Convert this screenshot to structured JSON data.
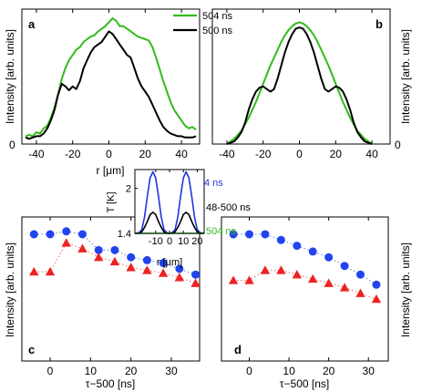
{
  "chart_data": [
    {
      "panel": "a",
      "type": "line",
      "xlabel": "r [μm]",
      "ylabel": "Intensity [arb. units]",
      "xlim": [
        -48,
        50
      ],
      "ylim": [
        0,
        1.03
      ],
      "xticks": [
        -40,
        -20,
        0,
        20,
        40
      ],
      "yticks": [
        0
      ],
      "legend": {
        "placement": "top",
        "entries": [
          "504 ns",
          "500 ns"
        ]
      },
      "series": [
        {
          "name": "504 ns",
          "color": "#33bb1a",
          "x": [
            -46,
            -44,
            -42,
            -40,
            -38,
            -36,
            -34,
            -32,
            -30,
            -28,
            -26,
            -24,
            -22,
            -20,
            -18,
            -16,
            -14,
            -12,
            -10,
            -8,
            -6,
            -4,
            -2,
            0,
            2,
            4,
            6,
            8,
            10,
            12,
            14,
            16,
            18,
            20,
            22,
            24,
            26,
            28,
            30,
            32,
            34,
            36,
            38,
            40,
            42,
            44,
            46,
            48
          ],
          "y": [
            0.06,
            0.07,
            0.06,
            0.09,
            0.08,
            0.12,
            0.14,
            0.2,
            0.28,
            0.38,
            0.5,
            0.58,
            0.64,
            0.68,
            0.72,
            0.74,
            0.78,
            0.8,
            0.82,
            0.83,
            0.86,
            0.88,
            0.9,
            0.93,
            0.96,
            0.94,
            0.9,
            0.9,
            0.88,
            0.86,
            0.84,
            0.82,
            0.81,
            0.8,
            0.79,
            0.74,
            0.66,
            0.57,
            0.48,
            0.4,
            0.32,
            0.26,
            0.22,
            0.18,
            0.14,
            0.12,
            0.13,
            0.11
          ]
        },
        {
          "name": "500 ns",
          "color": "#000000",
          "x": [
            -46,
            -44,
            -42,
            -40,
            -38,
            -36,
            -34,
            -32,
            -30,
            -28,
            -26,
            -24,
            -22,
            -20,
            -18,
            -16,
            -14,
            -12,
            -10,
            -8,
            -6,
            -4,
            -2,
            0,
            2,
            4,
            6,
            8,
            10,
            12,
            14,
            16,
            18,
            20,
            22,
            24,
            26,
            28,
            30,
            32,
            34,
            36,
            38,
            40,
            42,
            44,
            46,
            48
          ],
          "y": [
            0.05,
            0.04,
            0.05,
            0.06,
            0.06,
            0.08,
            0.12,
            0.18,
            0.26,
            0.38,
            0.46,
            0.44,
            0.41,
            0.44,
            0.42,
            0.48,
            0.58,
            0.64,
            0.7,
            0.74,
            0.76,
            0.78,
            0.82,
            0.86,
            0.84,
            0.8,
            0.76,
            0.72,
            0.68,
            0.66,
            0.58,
            0.5,
            0.44,
            0.4,
            0.36,
            0.3,
            0.24,
            0.18,
            0.13,
            0.1,
            0.08,
            0.07,
            0.06,
            0.06,
            0.05,
            0.05,
            0.05,
            0.06
          ]
        }
      ]
    },
    {
      "panel": "b",
      "type": "line",
      "xlabel": "r [μm]",
      "ylabel": "Intensity [arb. units]",
      "ylabel_side": "right",
      "xlim": [
        -48,
        50
      ],
      "ylim": [
        0,
        1.03
      ],
      "xticks": [
        -40,
        -20,
        0,
        20,
        40
      ],
      "yticks": [
        0
      ],
      "series": [
        {
          "name": "504 ns",
          "color": "#33bb1a",
          "x": [
            -40,
            -38,
            -36,
            -34,
            -32,
            -30,
            -28,
            -26,
            -24,
            -22,
            -20,
            -18,
            -16,
            -14,
            -12,
            -10,
            -8,
            -6,
            -4,
            -2,
            0,
            2,
            4,
            6,
            8,
            10,
            12,
            14,
            16,
            18,
            20,
            22,
            24,
            26,
            28,
            30,
            32,
            34,
            36,
            38,
            40
          ],
          "y": [
            0.0,
            0.02,
            0.04,
            0.07,
            0.1,
            0.15,
            0.2,
            0.26,
            0.32,
            0.39,
            0.46,
            0.53,
            0.6,
            0.66,
            0.72,
            0.78,
            0.83,
            0.87,
            0.9,
            0.92,
            0.93,
            0.92,
            0.9,
            0.87,
            0.83,
            0.78,
            0.72,
            0.66,
            0.6,
            0.53,
            0.46,
            0.39,
            0.32,
            0.26,
            0.2,
            0.15,
            0.1,
            0.07,
            0.04,
            0.02,
            0.0
          ]
        },
        {
          "name": "500 ns",
          "color": "#000000",
          "x": [
            -40,
            -38,
            -36,
            -34,
            -32,
            -30,
            -28,
            -26,
            -24,
            -22,
            -20,
            -18,
            -16,
            -14,
            -12,
            -10,
            -8,
            -6,
            -4,
            -2,
            0,
            2,
            4,
            6,
            8,
            10,
            12,
            14,
            16,
            18,
            20,
            22,
            24,
            26,
            28,
            30,
            32,
            34,
            36,
            38,
            40
          ],
          "y": [
            0.0,
            0.01,
            0.02,
            0.05,
            0.09,
            0.16,
            0.26,
            0.34,
            0.4,
            0.43,
            0.44,
            0.42,
            0.4,
            0.42,
            0.5,
            0.6,
            0.7,
            0.78,
            0.84,
            0.88,
            0.89,
            0.88,
            0.84,
            0.78,
            0.7,
            0.6,
            0.5,
            0.42,
            0.4,
            0.42,
            0.44,
            0.43,
            0.4,
            0.34,
            0.26,
            0.16,
            0.09,
            0.05,
            0.02,
            0.01,
            0.0
          ]
        }
      ]
    },
    {
      "panel": "inset",
      "type": "line",
      "xlabel": "r [μm]",
      "ylabel": "T [K]",
      "xlim": [
        -25,
        25
      ],
      "ylim": [
        1.4,
        2.25
      ],
      "xticks": [
        -10,
        0,
        10,
        20
      ],
      "xticklabels": [
        "-10",
        "0",
        "10",
        "20"
      ],
      "yticks": [
        1.4,
        2
      ],
      "series": [
        {
          "name": "4 ns",
          "color": "#2233dd",
          "x": [
            -25,
            -22,
            -20,
            -18,
            -16,
            -14,
            -12,
            -10,
            -8,
            -6,
            -4,
            -2,
            0,
            2,
            4,
            6,
            8,
            10,
            12,
            14,
            16,
            18,
            20,
            22,
            25
          ],
          "y": [
            1.4,
            1.41,
            1.45,
            1.62,
            1.9,
            2.14,
            2.22,
            2.14,
            1.9,
            1.62,
            1.45,
            1.41,
            1.4,
            1.41,
            1.45,
            1.62,
            1.9,
            2.14,
            2.22,
            2.14,
            1.9,
            1.62,
            1.45,
            1.41,
            1.4
          ]
        },
        {
          "name": "48-500 ns",
          "color": "#000000",
          "x": [
            -25,
            -22,
            -20,
            -18,
            -16,
            -14,
            -12,
            -10,
            -8,
            -6,
            -4,
            -2,
            0,
            2,
            4,
            6,
            8,
            10,
            12,
            14,
            16,
            18,
            20,
            22,
            25
          ],
          "y": [
            1.4,
            1.4,
            1.42,
            1.48,
            1.56,
            1.65,
            1.68,
            1.65,
            1.56,
            1.48,
            1.42,
            1.4,
            1.4,
            1.4,
            1.42,
            1.48,
            1.56,
            1.65,
            1.68,
            1.65,
            1.56,
            1.48,
            1.42,
            1.4,
            1.4
          ]
        },
        {
          "name": "504 ns",
          "color": "#33bb1a",
          "x": [
            -25,
            25
          ],
          "y": [
            1.4,
            1.4
          ]
        }
      ]
    },
    {
      "panel": "c",
      "type": "scatter",
      "xlabel": "τ−500 [ns]",
      "ylabel": "Intensity [arb. units]",
      "xlim": [
        -7,
        37
      ],
      "ylim": [
        0,
        1
      ],
      "xticks": [
        0,
        10,
        20,
        30
      ],
      "series": [
        {
          "name": "circles",
          "color": "#2244ee",
          "marker": "circle",
          "x": [
            -4,
            0,
            4,
            8,
            12,
            16,
            20,
            24,
            28,
            32,
            36
          ],
          "y": [
            0.88,
            0.88,
            0.9,
            0.88,
            0.77,
            0.77,
            0.72,
            0.7,
            0.68,
            0.64,
            0.6
          ]
        },
        {
          "name": "triangles",
          "color": "#ee2222",
          "marker": "triangle",
          "x": [
            -4,
            0,
            4,
            8,
            12,
            16,
            20,
            24,
            28,
            32,
            36
          ],
          "y": [
            0.62,
            0.62,
            0.82,
            0.78,
            0.72,
            0.69,
            0.65,
            0.63,
            0.61,
            0.58,
            0.54
          ]
        }
      ]
    },
    {
      "panel": "d",
      "type": "scatter",
      "xlabel": "τ−500 [ns]",
      "ylabel": "Intensity [arb. units]",
      "ylabel_side": "right",
      "xlim": [
        -7,
        35
      ],
      "ylim": [
        0,
        1
      ],
      "xticks": [
        0,
        10,
        20,
        30
      ],
      "series": [
        {
          "name": "circles",
          "color": "#2244ee",
          "marker": "circle",
          "x": [
            -4,
            0,
            4,
            8,
            12,
            16,
            20,
            24,
            28,
            32
          ],
          "y": [
            0.88,
            0.88,
            0.88,
            0.84,
            0.8,
            0.76,
            0.72,
            0.66,
            0.6,
            0.53
          ]
        },
        {
          "name": "triangles",
          "color": "#ee2222",
          "marker": "triangle",
          "x": [
            -4,
            0,
            4,
            8,
            12,
            16,
            20,
            24,
            28,
            32
          ],
          "y": [
            0.56,
            0.56,
            0.63,
            0.63,
            0.6,
            0.57,
            0.54,
            0.51,
            0.47,
            0.43
          ]
        }
      ]
    }
  ],
  "labels": {
    "panel_a": "a",
    "panel_b": "b",
    "panel_c": "c",
    "panel_d": "d",
    "legend_504": "504 ns",
    "legend_500": "500 ns",
    "inset_4ns": "4 ns",
    "inset_48_500": "48-500 ns",
    "inset_504": "504 ns",
    "ylabel_intensity": "Intensity [arb. units]",
    "xlabel_r": "r [μm]",
    "xlabel_tau": "τ−500 [ns]",
    "inset_ylabel": "T [K]",
    "inset_xlabel": "r [μm]",
    "zero": "0"
  }
}
